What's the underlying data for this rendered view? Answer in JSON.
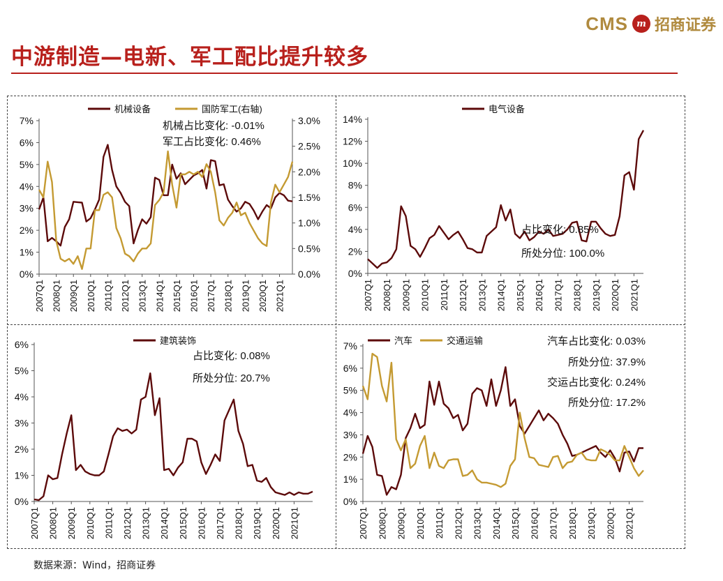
{
  "header": {
    "logo_text": "CMS",
    "logo_emblem": "m",
    "logo_cn": "招商证券",
    "title": "中游制造—电新、军工配比提升较多"
  },
  "colors": {
    "maroon": "#5c0a0a",
    "gold": "#c49a32",
    "brand": "#b8201c"
  },
  "footer": {
    "source": "数据来源：Wind，招商证券"
  },
  "chart_data": [
    {
      "id": "machinery",
      "type": "line",
      "x_ticks": [
        "2007Q1",
        "2008Q1",
        "2009Q1",
        "2010Q1",
        "2011Q1",
        "2012Q1",
        "2013Q1",
        "2014Q1",
        "2015Q1",
        "2016Q1",
        "2017Q1",
        "2018Q1",
        "2019Q1",
        "2020Q1",
        "2021Q1"
      ],
      "y_left": {
        "min": 0,
        "max": 7,
        "step": 1,
        "format": "pct0"
      },
      "y_right": {
        "min": 0,
        "max": 3.0,
        "step": 0.5,
        "format": "pct1"
      },
      "series": [
        {
          "name": "机械设备",
          "axis": "left",
          "color": "#5c0a0a",
          "values": [
            2.95,
            3.5,
            1.5,
            1.65,
            1.5,
            1.3,
            2.15,
            2.5,
            3.3,
            3.28,
            3.26,
            2.4,
            2.55,
            2.95,
            3.4,
            5.35,
            5.9,
            4.75,
            4.0,
            3.7,
            3.3,
            3.1,
            1.4,
            2.0,
            2.5,
            2.3,
            2.6,
            4.4,
            4.3,
            3.6,
            3.6,
            5.0,
            4.35,
            4.6,
            4.1,
            4.3,
            4.5,
            4.6,
            4.75,
            3.9,
            5.2,
            5.15,
            4.05,
            4.1,
            3.4,
            3.1,
            2.85,
            3.0,
            3.3,
            3.2,
            2.9,
            2.5,
            2.85,
            3.15,
            3.0,
            3.5,
            3.7,
            3.6,
            3.35,
            3.32
          ]
        },
        {
          "name": "国防军工(右轴)",
          "axis": "right",
          "color": "#c49a32",
          "values": [
            1.65,
            1.5,
            2.2,
            1.8,
            0.65,
            0.3,
            0.25,
            0.3,
            0.2,
            0.35,
            0.1,
            0.5,
            0.5,
            1.25,
            1.25,
            1.55,
            1.6,
            1.5,
            0.9,
            0.7,
            0.4,
            0.35,
            0.25,
            0.4,
            0.5,
            0.5,
            0.6,
            1.35,
            1.45,
            1.6,
            2.4,
            1.75,
            1.3,
            1.95,
            1.95,
            2.0,
            1.95,
            2.0,
            1.9,
            2.15,
            2.0,
            1.6,
            1.05,
            0.95,
            1.1,
            1.2,
            1.4,
            1.15,
            1.2,
            1.0,
            0.85,
            0.7,
            0.6,
            0.55,
            1.4,
            1.75,
            1.6,
            1.75,
            1.9,
            2.2
          ]
        }
      ],
      "annotations": [
        "机械占比变化:  -0.01%",
        "军工占比变化:  0.46%"
      ]
    },
    {
      "id": "electrical",
      "type": "line",
      "x_ticks": [
        "2007Q1",
        "2008Q1",
        "2009Q1",
        "2010Q1",
        "2011Q1",
        "2012Q1",
        "2013Q1",
        "2014Q1",
        "2015Q1",
        "2016Q1",
        "2017Q1",
        "2018Q1",
        "2019Q1",
        "2020Q1",
        "2021Q1"
      ],
      "y_left": {
        "min": 0,
        "max": 14,
        "step": 2,
        "format": "pct0"
      },
      "series": [
        {
          "name": "电气设备",
          "axis": "left",
          "color": "#5c0a0a",
          "values": [
            1.3,
            0.9,
            0.5,
            0.9,
            1.0,
            1.4,
            2.2,
            6.1,
            5.2,
            2.5,
            2.2,
            1.5,
            2.3,
            3.2,
            3.5,
            4.3,
            3.7,
            3.1,
            3.5,
            3.8,
            3.1,
            2.3,
            2.2,
            1.9,
            1.9,
            3.4,
            3.8,
            4.2,
            6.2,
            4.8,
            5.8,
            3.6,
            3.2,
            3.8,
            3.0,
            3.3,
            3.8,
            3.6,
            4.0,
            3.4,
            3.5,
            3.6,
            4.0,
            4.6,
            4.7,
            3.0,
            2.9,
            4.7,
            4.7,
            4.1,
            3.6,
            3.4,
            3.5,
            5.2,
            8.9,
            9.2,
            7.6,
            12.2,
            13.0
          ]
        }
      ],
      "annotations": [
        "占比变化:  0.85%",
        "所处分位:  100.0%"
      ]
    },
    {
      "id": "construction",
      "type": "line",
      "x_ticks": [
        "2007Q1",
        "2008Q1",
        "2009Q1",
        "2010Q1",
        "2011Q1",
        "2012Q1",
        "2013Q1",
        "2014Q1",
        "2015Q1",
        "2016Q1",
        "2017Q1",
        "2018Q1",
        "2019Q1",
        "2020Q1",
        "2021Q1"
      ],
      "y_left": {
        "min": 0,
        "max": 6,
        "step": 1,
        "format": "pct0"
      },
      "series": [
        {
          "name": "建筑装饰",
          "axis": "left",
          "color": "#5c0a0a",
          "values": [
            0.08,
            0.05,
            0.2,
            1.0,
            0.85,
            0.9,
            1.8,
            2.6,
            3.3,
            1.2,
            1.4,
            1.15,
            1.05,
            1.0,
            1.0,
            1.15,
            1.8,
            2.5,
            2.8,
            2.7,
            2.75,
            2.6,
            2.75,
            3.9,
            4.0,
            4.9,
            3.3,
            3.95,
            1.2,
            1.25,
            1.0,
            1.3,
            1.5,
            2.4,
            2.4,
            2.3,
            1.5,
            1.05,
            1.4,
            1.8,
            1.55,
            3.1,
            3.5,
            3.9,
            2.7,
            2.2,
            1.35,
            1.4,
            0.8,
            0.75,
            0.9,
            0.55,
            0.35,
            0.3,
            0.25,
            0.35,
            0.25,
            0.35,
            0.3,
            0.3,
            0.38
          ]
        }
      ],
      "annotations": [
        "占比变化:  0.08%",
        "所处分位:  20.7%"
      ]
    },
    {
      "id": "auto-transport",
      "type": "line",
      "x_ticks": [
        "2007Q1",
        "2008Q1",
        "2009Q1",
        "2010Q1",
        "2011Q1",
        "2012Q1",
        "2013Q1",
        "2014Q1",
        "2015Q1",
        "2016Q1",
        "2017Q1",
        "2018Q1",
        "2019Q1",
        "2020Q1",
        "2021Q1"
      ],
      "y_left": {
        "min": 0,
        "max": 7,
        "step": 1,
        "format": "pct0"
      },
      "series": [
        {
          "name": "汽车",
          "axis": "left",
          "color": "#5c0a0a",
          "values": [
            2.15,
            2.95,
            2.45,
            1.2,
            1.15,
            0.3,
            0.65,
            0.55,
            1.2,
            2.85,
            3.3,
            3.95,
            3.3,
            3.45,
            5.4,
            4.35,
            5.4,
            4.4,
            4.2,
            3.75,
            3.9,
            3.2,
            3.5,
            4.85,
            5.1,
            5.0,
            4.3,
            5.5,
            4.3,
            5.0,
            6.05,
            4.3,
            4.6,
            3.4,
            3.05,
            3.4,
            3.75,
            4.1,
            3.65,
            3.95,
            3.75,
            3.5,
            3.0,
            2.6,
            2.05,
            2.1,
            2.2,
            2.3,
            2.4,
            2.5,
            2.2,
            2.0,
            2.3,
            1.95,
            1.35,
            2.2,
            2.25,
            1.8,
            2.4,
            2.4
          ]
        },
        {
          "name": "交通运输",
          "axis": "left",
          "color": "#c49a32",
          "values": [
            5.2,
            4.6,
            6.65,
            6.5,
            5.2,
            4.5,
            6.25,
            2.8,
            2.3,
            2.8,
            1.5,
            1.7,
            2.5,
            2.95,
            1.5,
            2.2,
            1.6,
            1.5,
            1.85,
            1.9,
            1.9,
            1.15,
            1.2,
            1.4,
            1.0,
            0.85,
            0.85,
            0.8,
            0.75,
            0.65,
            0.8,
            1.6,
            1.9,
            4.0,
            2.85,
            2.0,
            1.95,
            1.65,
            1.6,
            1.55,
            2.0,
            2.05,
            1.5,
            1.75,
            1.8,
            2.1,
            2.2,
            1.9,
            1.85,
            1.85,
            2.35,
            2.25,
            2.1,
            1.85,
            1.85,
            2.5,
            2.0,
            1.5,
            1.15,
            1.4
          ]
        }
      ],
      "annotations": [
        "汽车占比变化:  0.03%",
        "所处分位:  37.9%",
        "交运占比变化:  0.24%",
        "所处分位:  17.2%"
      ]
    }
  ]
}
